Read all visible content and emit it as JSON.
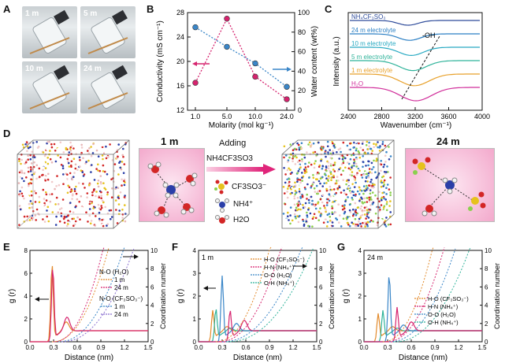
{
  "panels": {
    "A": {
      "letter": "A",
      "photos": [
        "1 m",
        "5 m",
        "10 m",
        "24 m"
      ]
    },
    "B": {
      "letter": "B",
      "chart_data": {
        "type": "line",
        "x": [
          1.0,
          5.0,
          10.0,
          24.0
        ],
        "xticks": [
          "1.0",
          "5.0",
          "10.0",
          "24.0"
        ],
        "xlabel": "Molarity (mol kg⁻¹)",
        "ylabel_left": "Conductivity (mS cm⁻¹)",
        "ylabel_right": "Water content (wt%)",
        "ylim_left": [
          12,
          28
        ],
        "yticks_left": [
          "12",
          "16",
          "20",
          "24",
          "28"
        ],
        "ylim_right": [
          0,
          100
        ],
        "yticks_right": [
          "0",
          "20",
          "40",
          "60",
          "80",
          "100"
        ],
        "series": [
          {
            "values": [
              16.5,
              27.0,
              17.5,
              13.8
            ],
            "color": "#d6236e",
            "axis": "left"
          },
          {
            "values": [
              85,
              65,
              48,
              24
            ],
            "color": "#3a86c8",
            "axis": "right"
          }
        ]
      }
    },
    "C": {
      "letter": "C",
      "chart_data": {
        "type": "line",
        "xlabel": "Wavenumber (cm⁻¹)",
        "ylabel": "Intensity (a.u.)",
        "xticks": [
          "2400",
          "2800",
          "3200",
          "3600",
          "4000"
        ],
        "annotation": "-OH",
        "series": [
          {
            "name": "NH₄CF₃SO₃",
            "color": "#2d4a9a"
          },
          {
            "name": "24 m electrolyte",
            "color": "#2b7fc4"
          },
          {
            "name": "10 m electrolyte",
            "color": "#27a9c2"
          },
          {
            "name": "5 m electrolyte",
            "color": "#2fb39a"
          },
          {
            "name": "1 m electrolyte",
            "color": "#e8a12b"
          },
          {
            "name": "H₂O",
            "color": "#d12f9b"
          }
        ]
      }
    },
    "D": {
      "letter": "D",
      "left_label": "1 m",
      "right_label": "24 m",
      "adding": "Adding",
      "salt": "NH4CF3SO3",
      "legend": [
        "CF3SO3⁻",
        "NH4⁺",
        "H2O"
      ]
    },
    "E": {
      "letter": "E",
      "chart_data": {
        "type": "line",
        "xlabel": "Distance (nm)",
        "ylabel": "g (r)",
        "ylabel_right": "Coordination number",
        "xticks": [
          "0.0",
          "0.3",
          "0.6",
          "0.9",
          "1.2",
          "1.5"
        ],
        "yticks_left": [
          "0",
          "2",
          "4",
          "6",
          "8"
        ],
        "yticks_right": [
          "0",
          "2",
          "4",
          "6",
          "8",
          "10"
        ],
        "legend_groups": [
          {
            "title": "N-O (H₂O)",
            "items": [
              "1 m",
              "24 m"
            ]
          },
          {
            "title": "N-O (CF₃SO₃⁻)",
            "items": [
              "1 m",
              "24 m"
            ]
          }
        ]
      }
    },
    "F": {
      "letter": "F",
      "corner": "1 m",
      "chart_data": {
        "type": "line",
        "xlabel": "Distance (nm)",
        "ylabel": "g (r)",
        "ylabel_right": "Coordination number",
        "xticks": [
          "0.0",
          "0.3",
          "0.6",
          "0.9",
          "1.2",
          "1.5"
        ],
        "yticks_left": [
          "0",
          "1",
          "2",
          "3",
          "4"
        ],
        "yticks_right": [
          "0",
          "2",
          "4",
          "6",
          "8",
          "10"
        ],
        "legend": [
          "H-O (CF₃SO₃⁻)",
          "H-N (NH₄⁺)",
          "O-O (H₂O)",
          "O-H (NH₄⁺)"
        ]
      }
    },
    "G": {
      "letter": "G",
      "corner": "24 m",
      "chart_data": {
        "type": "line",
        "xlabel": "Distance (nm)",
        "ylabel": "g (r)",
        "ylabel_right": "Coordination number",
        "xticks": [
          "0.0",
          "0.3",
          "0.6",
          "0.9",
          "1.2",
          "1.5"
        ],
        "yticks_left": [
          "0",
          "1",
          "2",
          "3",
          "4"
        ],
        "yticks_right": [
          "0",
          "2",
          "4",
          "6",
          "8",
          "10"
        ],
        "legend": [
          "H-O (CF₃SO₃⁻)",
          "H-N (NH₄⁺)",
          "O-O (H₂O)",
          "O-H (NH₄⁺)"
        ]
      }
    }
  }
}
